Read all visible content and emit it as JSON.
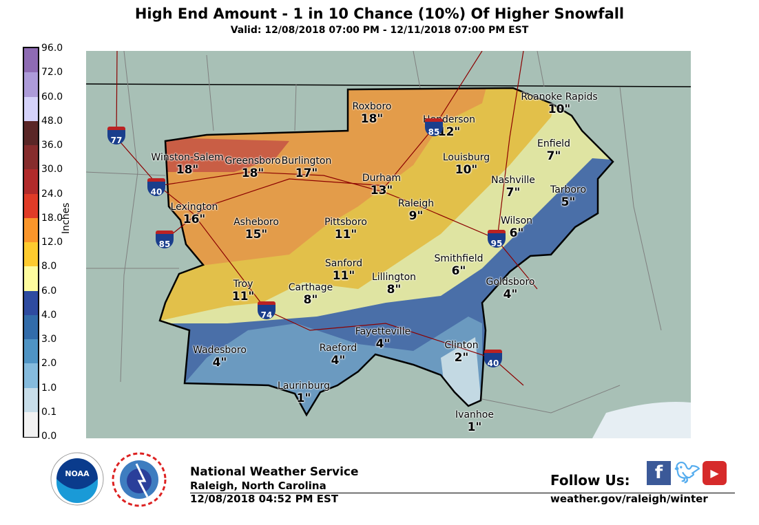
{
  "header": {
    "title": "High End Amount - 1 in 10 Chance (10%) Of Higher Snowfall",
    "valid": "Valid: 12/08/2018 07:00 PM - 12/11/2018 07:00 PM EST"
  },
  "legend": {
    "unit": "Inches",
    "ticks": [
      "96.0",
      "72.0",
      "60.0",
      "48.0",
      "36.0",
      "30.0",
      "24.0",
      "18.0",
      "12.0",
      "8.0",
      "6.0",
      "4.0",
      "3.0",
      "2.0",
      "1.0",
      "0.1",
      "0.0"
    ],
    "colors": [
      "#8e6bb3",
      "#ad9bd9",
      "#d5d2fa",
      "#5a2626",
      "#862c2c",
      "#b12a2a",
      "#e03b27",
      "#fa952a",
      "#fecb2e",
      "#fefc9e",
      "#2e4ba0",
      "#326caa",
      "#4f94c4",
      "#85bbdd",
      "#c7dde9",
      "#f2f2f2"
    ]
  },
  "cities": [
    {
      "name": "Roxboro",
      "amount": "18\""
    },
    {
      "name": "Henderson",
      "amount": "12\""
    },
    {
      "name": "Roanoke Rapids",
      "amount": "10\""
    },
    {
      "name": "Enfield",
      "amount": "7\""
    },
    {
      "name": "Winston-Salem",
      "amount": "18\""
    },
    {
      "name": "Greensboro",
      "amount": "18\""
    },
    {
      "name": "Burlington",
      "amount": "17\""
    },
    {
      "name": "Louisburg",
      "amount": "10\""
    },
    {
      "name": "Durham",
      "amount": "13\""
    },
    {
      "name": "Nashville",
      "amount": "7\""
    },
    {
      "name": "Tarboro",
      "amount": "5\""
    },
    {
      "name": "Lexington",
      "amount": "16\""
    },
    {
      "name": "Raleigh",
      "amount": "9\""
    },
    {
      "name": "Asheboro",
      "amount": "15\""
    },
    {
      "name": "Pittsboro",
      "amount": "11\""
    },
    {
      "name": "Wilson",
      "amount": "6\""
    },
    {
      "name": "Smithfield",
      "amount": "6\""
    },
    {
      "name": "Sanford",
      "amount": "11\""
    },
    {
      "name": "Lillington",
      "amount": "8\""
    },
    {
      "name": "Goldsboro",
      "amount": "4\""
    },
    {
      "name": "Troy",
      "amount": "11\""
    },
    {
      "name": "Carthage",
      "amount": "8\""
    },
    {
      "name": "Fayetteville",
      "amount": "4\""
    },
    {
      "name": "Clinton",
      "amount": "2\""
    },
    {
      "name": "Wadesboro",
      "amount": "4\""
    },
    {
      "name": "Raeford",
      "amount": "4\""
    },
    {
      "name": "Laurinburg",
      "amount": "1\""
    },
    {
      "name": "Ivanhoe",
      "amount": "1\""
    }
  ],
  "interstates": [
    "77",
    "40",
    "85",
    "85",
    "95",
    "74",
    "40"
  ],
  "footer": {
    "org": "National Weather Service",
    "office": "Raleigh, North Carolina",
    "issued": "12/08/2018 04:52 PM EST",
    "follow": "Follow Us:",
    "url": "weather.gov/raleigh/winter",
    "noaa_logo": "NOAA",
    "nws_logo": "NATIONAL WEATHER SERVICE"
  },
  "social_icons": [
    "facebook-icon",
    "twitter-icon",
    "youtube-icon"
  ]
}
